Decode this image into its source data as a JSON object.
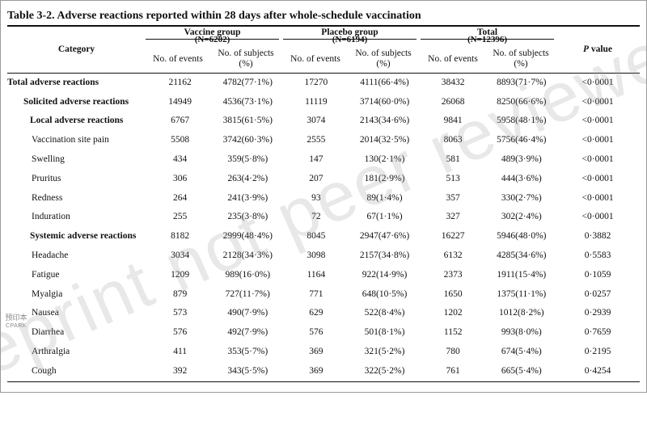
{
  "title": "Table 3-2. Adverse reactions reported within 28 days after whole-schedule vaccination",
  "header": {
    "category": "Category",
    "vaccine_group": "Vaccine group",
    "vaccine_n": "(N=6202)",
    "placebo_group": "Placebo group",
    "placebo_n": "(N=6194)",
    "total": "Total",
    "total_n": "(N=12396)",
    "events": "No. of events",
    "subjects": "No. of subjects",
    "pct": "(%)",
    "p_italic": "P",
    "p_value": " value"
  },
  "rows": [
    {
      "category": "Total adverse reactions",
      "v_events": "21162",
      "v_subjects": "4782(77·1%)",
      "p_events": "17270",
      "p_subjects": "4111(66·4%)",
      "t_events": "38432",
      "t_subjects": "8893(71·7%)",
      "p_val": "<0·0001"
    },
    {
      "category": "Solicited adverse reactions",
      "v_events": "14949",
      "v_subjects": "4536(73·1%)",
      "p_events": "11119",
      "p_subjects": "3714(60·0%)",
      "t_events": "26068",
      "t_subjects": "8250(66·6%)",
      "p_val": "<0·0001"
    },
    {
      "category": "Local adverse reactions",
      "v_events": "6767",
      "v_subjects": "3815(61·5%)",
      "p_events": "3074",
      "p_subjects": "2143(34·6%)",
      "t_events": "9841",
      "t_subjects": "5958(48·1%)",
      "p_val": "<0·0001"
    },
    {
      "category": "Vaccination site pain",
      "v_events": "5508",
      "v_subjects": "3742(60·3%)",
      "p_events": "2555",
      "p_subjects": "2014(32·5%)",
      "t_events": "8063",
      "t_subjects": "5756(46·4%)",
      "p_val": "<0·0001"
    },
    {
      "category": "Swelling",
      "v_events": "434",
      "v_subjects": "359(5·8%)",
      "p_events": "147",
      "p_subjects": "130(2·1%)",
      "t_events": "581",
      "t_subjects": "489(3·9%)",
      "p_val": "<0·0001"
    },
    {
      "category": "Pruritus",
      "v_events": "306",
      "v_subjects": "263(4·2%)",
      "p_events": "207",
      "p_subjects": "181(2·9%)",
      "t_events": "513",
      "t_subjects": "444(3·6%)",
      "p_val": "<0·0001"
    },
    {
      "category": "Redness",
      "v_events": "264",
      "v_subjects": "241(3·9%)",
      "p_events": "93",
      "p_subjects": "89(1·4%)",
      "t_events": "357",
      "t_subjects": "330(2·7%)",
      "p_val": "<0·0001"
    },
    {
      "category": "Induration",
      "v_events": "255",
      "v_subjects": "235(3·8%)",
      "p_events": "72",
      "p_subjects": "67(1·1%)",
      "t_events": "327",
      "t_subjects": "302(2·4%)",
      "p_val": "<0·0001"
    },
    {
      "category": "Systemic adverse reactions",
      "v_events": "8182",
      "v_subjects": "2999(48·4%)",
      "p_events": "8045",
      "p_subjects": "2947(47·6%)",
      "t_events": "16227",
      "t_subjects": "5946(48·0%)",
      "p_val": "0·3882"
    },
    {
      "category": "Headache",
      "v_events": "3034",
      "v_subjects": "2128(34·3%)",
      "p_events": "3098",
      "p_subjects": "2157(34·8%)",
      "t_events": "6132",
      "t_subjects": "4285(34·6%)",
      "p_val": "0·5583"
    },
    {
      "category": "Fatigue",
      "v_events": "1209",
      "v_subjects": "989(16·0%)",
      "p_events": "1164",
      "p_subjects": "922(14·9%)",
      "t_events": "2373",
      "t_subjects": "1911(15·4%)",
      "p_val": "0·1059"
    },
    {
      "category": "Myalgia",
      "v_events": "879",
      "v_subjects": "727(11·7%)",
      "p_events": "771",
      "p_subjects": "648(10·5%)",
      "t_events": "1650",
      "t_subjects": "1375(11·1%)",
      "p_val": "0·0257"
    },
    {
      "category": "Nausea",
      "v_events": "573",
      "v_subjects": "490(7·9%)",
      "p_events": "629",
      "p_subjects": "522(8·4%)",
      "t_events": "1202",
      "t_subjects": "1012(8·2%)",
      "p_val": "0·2939"
    },
    {
      "category": "Diarrhea",
      "v_events": "576",
      "v_subjects": "492(7·9%)",
      "p_events": "576",
      "p_subjects": "501(8·1%)",
      "t_events": "1152",
      "t_subjects": "993(8·0%)",
      "p_val": "0·7659"
    },
    {
      "category": "Arthralgia",
      "v_events": "411",
      "v_subjects": "353(5·7%)",
      "p_events": "369",
      "p_subjects": "321(5·2%)",
      "t_events": "780",
      "t_subjects": "674(5·4%)",
      "p_val": "0·2195"
    },
    {
      "category": "Cough",
      "v_events": "392",
      "v_subjects": "343(5·5%)",
      "p_events": "369",
      "p_subjects": "322(5·2%)",
      "t_events": "761",
      "t_subjects": "665(5·4%)",
      "p_val": "0·4254"
    }
  ],
  "watermark": "Preprint not peer reviewed",
  "logo": {
    "line1": "预印本",
    "line2": "CPARK"
  }
}
